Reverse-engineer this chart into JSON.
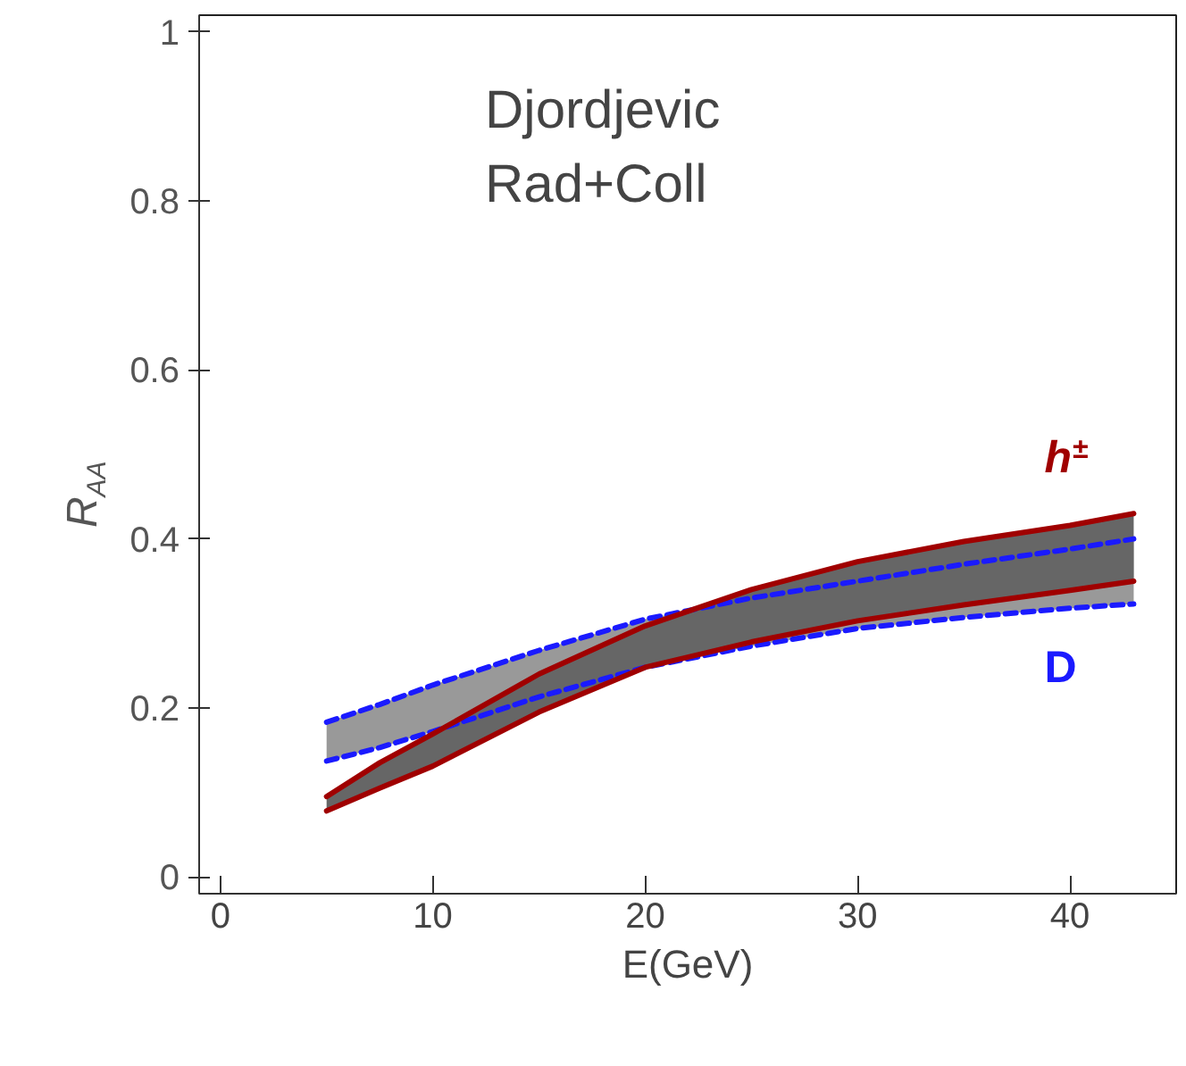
{
  "chart_data": {
    "type": "line",
    "xlabel": "E(GeV)",
    "ylabel": "R$_{AA}$",
    "annotations": [
      "Djordjevic\nRad+Coll"
    ],
    "x": [
      5,
      7.5,
      10,
      15,
      20,
      25,
      30,
      35,
      40,
      43
    ],
    "xlim": [
      -1,
      45
    ],
    "ylim": [
      -0.02,
      1.02
    ],
    "xticks": [
      0,
      10,
      20,
      30,
      40
    ],
    "yticks": [
      0,
      0.2,
      0.4,
      0.6,
      0.8,
      1
    ],
    "grid": false,
    "colors": [
      "#999999",
      "#666666"
    ],
    "series": [
      {
        "color": "#1a1aff",
        "line_style": "dashed",
        "values": [
          0.183,
          0.204,
          0.227,
          0.268,
          0.305,
          0.33,
          0.35,
          0.37,
          0.388,
          0.4
        ],
        "lower": [
          0.137,
          0.153,
          0.172,
          0.213,
          0.248,
          0.273,
          0.294,
          0.307,
          0.318,
          0.323
        ],
        "upper": [
          0.183,
          0.204,
          0.227,
          0.268,
          0.305,
          0.33,
          0.35,
          0.37,
          0.388,
          0.4
        ]
      },
      {
        "name": "D",
        "color": "#1a1aff",
        "line_style": "dashed",
        "values": [
          0.137,
          0.153,
          0.172,
          0.213,
          0.248,
          0.273,
          0.294,
          0.307,
          0.318,
          0.323
        ]
      },
      {
        "name": "h$^{±}$",
        "color": "#a00000",
        "line_style": "solid",
        "values": [
          0.095,
          0.135,
          0.169,
          0.24,
          0.297,
          0.34,
          0.373,
          0.397,
          0.416,
          0.43
        ],
        "lower": [
          0.078,
          0.105,
          0.131,
          0.195,
          0.248,
          0.278,
          0.303,
          0.322,
          0.339,
          0.35
        ],
        "upper": [
          0.095,
          0.135,
          0.169,
          0.24,
          0.297,
          0.34,
          0.373,
          0.397,
          0.416,
          0.43
        ]
      },
      {
        "color": "#a00000",
        "line_style": "solid",
        "values": [
          0.078,
          0.105,
          0.131,
          0.195,
          0.248,
          0.278,
          0.303,
          0.322,
          0.339,
          0.35
        ]
      }
    ]
  }
}
